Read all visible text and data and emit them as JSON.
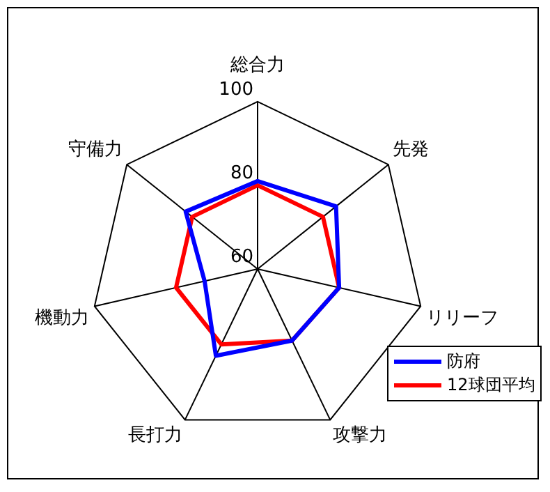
{
  "chart_data": {
    "type": "radar",
    "categories": [
      "総合力",
      "先発",
      "リリーフ",
      "攻撃力",
      "長打力",
      "機動力",
      "守備力"
    ],
    "series": [
      {
        "name": "防府",
        "color": "#0000ff",
        "values": [
          81,
          84,
          80,
          79,
          83,
          73,
          82
        ]
      },
      {
        "name": "12球団平均",
        "color": "#ff0000",
        "values": [
          80,
          80,
          80,
          79,
          80,
          80,
          80
        ]
      }
    ],
    "ylim": [
      60,
      100
    ],
    "yticks": [
      60,
      80,
      100
    ],
    "legend": "bottom right",
    "marker": "none"
  }
}
